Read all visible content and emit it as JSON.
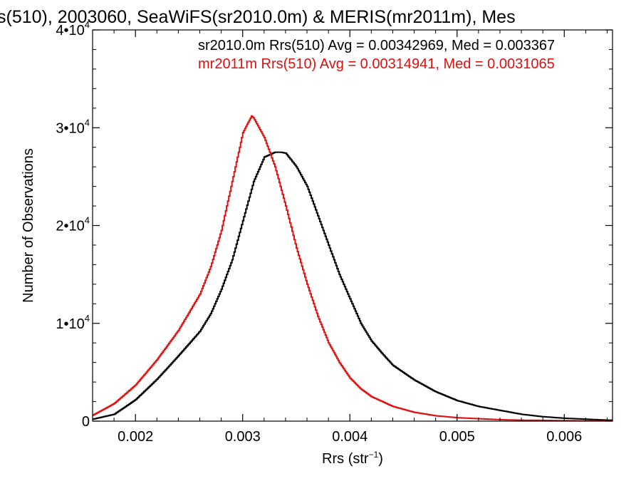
{
  "chart_data": {
    "type": "line",
    "title": "s(510), 2003060, SeaWiFS(sr2010.0m) & MERIS(mr2011m), Mes",
    "xlabel": "Rrs (str",
    "xlabel_sup": "−1",
    "xlabel_close": ")",
    "ylabel": "Number of Observations",
    "xlim": [
      0.0016,
      0.00645
    ],
    "ylim": [
      0,
      40000
    ],
    "x_ticks": [
      {
        "value": 0.002,
        "label": "0.002"
      },
      {
        "value": 0.003,
        "label": "0.003"
      },
      {
        "value": 0.004,
        "label": "0.004"
      },
      {
        "value": 0.005,
        "label": "0.005"
      },
      {
        "value": 0.006,
        "label": "0.006"
      }
    ],
    "y_ticks": [
      {
        "value": 0,
        "mant": "0",
        "exp": ""
      },
      {
        "value": 10000,
        "mant": "1•10",
        "exp": "4"
      },
      {
        "value": 20000,
        "mant": "2•10",
        "exp": "4"
      },
      {
        "value": 30000,
        "mant": "3•10",
        "exp": "4"
      },
      {
        "value": 40000,
        "mant": "4•10",
        "exp": "4"
      }
    ],
    "grid": false,
    "legend_placement": "top-right",
    "series": [
      {
        "name": "sr2010.0m Rrs(510) Avg = 0.00342969, Med = 0.003367",
        "color": "#000000",
        "x": [
          0.0016,
          0.0018,
          0.002,
          0.0022,
          0.0024,
          0.0026,
          0.0027,
          0.0028,
          0.0029,
          0.003,
          0.0031,
          0.0032,
          0.0033,
          0.00335,
          0.0034,
          0.0035,
          0.0036,
          0.0037,
          0.0038,
          0.0039,
          0.004,
          0.0041,
          0.0042,
          0.0043,
          0.0044,
          0.0046,
          0.0048,
          0.005,
          0.0052,
          0.0054,
          0.0056,
          0.0058,
          0.006,
          0.0062,
          0.0064
        ],
        "y": [
          200,
          700,
          2200,
          4300,
          6700,
          9200,
          11000,
          13500,
          16500,
          20500,
          24500,
          27000,
          27500,
          27500,
          27400,
          26000,
          24000,
          21000,
          18000,
          15000,
          12500,
          10000,
          8200,
          6900,
          5700,
          4200,
          3000,
          2100,
          1500,
          1100,
          700,
          450,
          300,
          200,
          100
        ]
      },
      {
        "name": "mr2011m Rrs(510) Avg = 0.00314941, Med = 0.0031065",
        "color": "#e01010",
        "x": [
          0.0016,
          0.0018,
          0.002,
          0.0022,
          0.0024,
          0.0026,
          0.0027,
          0.0028,
          0.0029,
          0.003,
          0.00308,
          0.0031,
          0.0032,
          0.0033,
          0.0034,
          0.0035,
          0.0036,
          0.0037,
          0.0038,
          0.0039,
          0.004,
          0.0041,
          0.0042,
          0.0044,
          0.0046,
          0.0048,
          0.005,
          0.0052,
          0.0054,
          0.0056,
          0.0058,
          0.006,
          0.0062,
          0.0064
        ],
        "y": [
          600,
          1800,
          3700,
          6300,
          9300,
          13000,
          15800,
          19500,
          24500,
          29500,
          31200,
          31000,
          29000,
          26000,
          22000,
          17700,
          14000,
          10700,
          8000,
          6000,
          4400,
          3300,
          2500,
          1500,
          900,
          550,
          350,
          250,
          150,
          100,
          80,
          50,
          30,
          10
        ]
      }
    ]
  }
}
